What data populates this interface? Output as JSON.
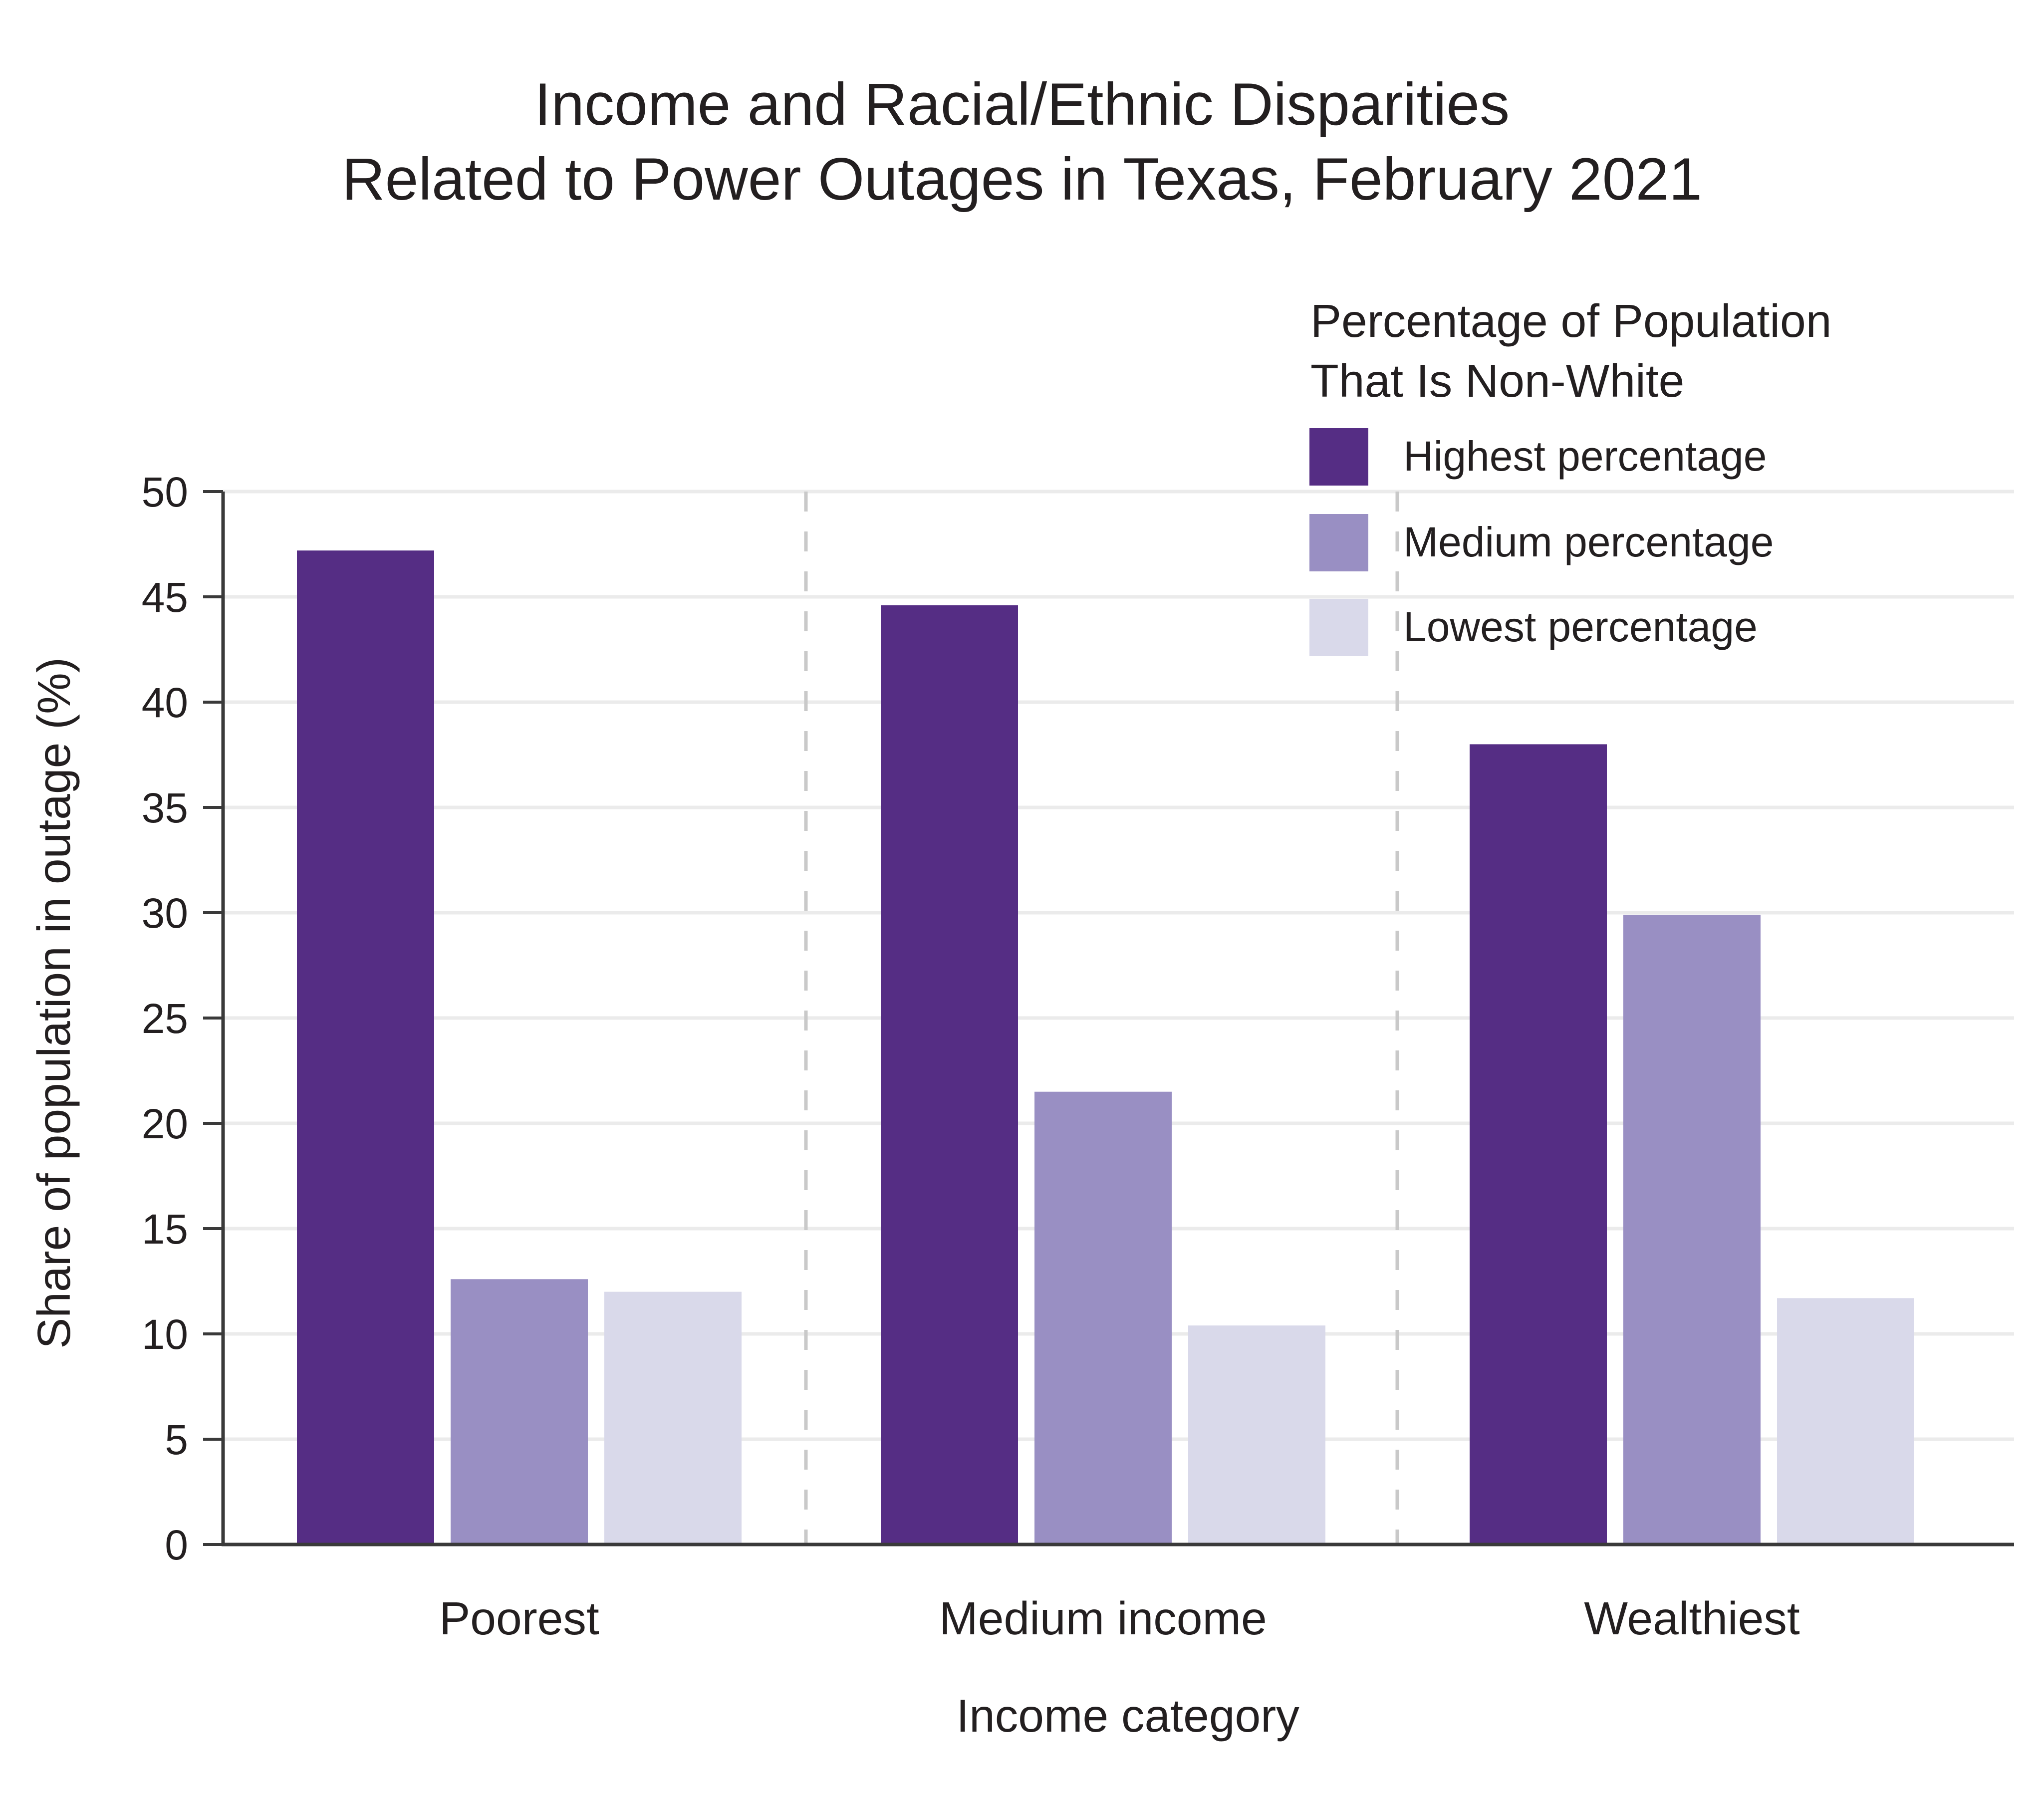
{
  "chart_data": {
    "type": "bar",
    "title_lines": [
      "Income and Racial/Ethnic Disparities",
      "Related to Power Outages in Texas, February 2021"
    ],
    "xlabel": "Income category",
    "ylabel": "Share of population in outage (%)",
    "ylim": [
      0,
      50
    ],
    "yticks": [
      0,
      5,
      10,
      15,
      20,
      25,
      30,
      35,
      40,
      45,
      50
    ],
    "grid": true,
    "categories": [
      "Poorest",
      "Medium income",
      "Wealthiest"
    ],
    "legend": {
      "title_lines": [
        "Percentage of Population",
        "That Is Non-White"
      ],
      "placement": "top-right"
    },
    "series": [
      {
        "name": "Highest percentage",
        "color": "#552d84",
        "values": [
          47.2,
          44.6,
          38.0
        ]
      },
      {
        "name": "Medium percentage",
        "color": "#998fc3",
        "values": [
          12.6,
          21.5,
          29.9
        ]
      },
      {
        "name": "Lowest percentage",
        "color": "#d9d9ea",
        "values": [
          12.0,
          10.4,
          11.7
        ]
      }
    ]
  }
}
